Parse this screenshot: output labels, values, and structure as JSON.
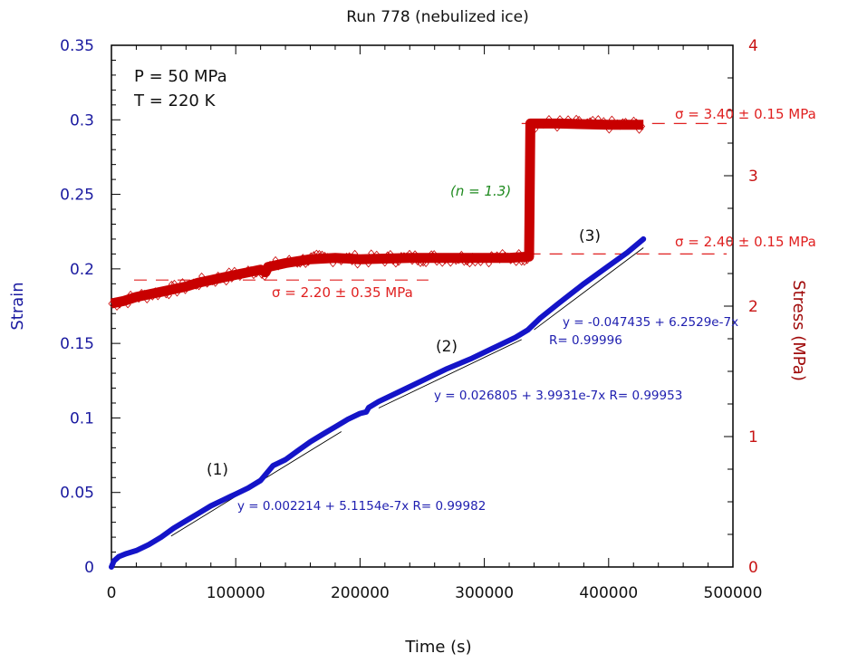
{
  "chart_data": {
    "type": "line",
    "title": "Run 778 (nebulized ice)",
    "xlabel": "Time (s)",
    "ylabel": "Strain",
    "y2label": "Stress (MPa)",
    "xlim": [
      0,
      500000
    ],
    "ylim": [
      0,
      0.35
    ],
    "y2lim": [
      0,
      4
    ],
    "grid": false,
    "x_ticks": [
      {
        "value": 0,
        "label": "0"
      },
      {
        "value": 100000,
        "label": "100000"
      },
      {
        "value": 200000,
        "label": "200000"
      },
      {
        "value": 300000,
        "label": "300000"
      },
      {
        "value": 400000,
        "label": "400000"
      },
      {
        "value": 500000,
        "label": "500000"
      }
    ],
    "y_ticks": [
      {
        "value": 0,
        "label": "0"
      },
      {
        "value": 0.05,
        "label": "0.05"
      },
      {
        "value": 0.1,
        "label": "0.1"
      },
      {
        "value": 0.15,
        "label": "0.15"
      },
      {
        "value": 0.2,
        "label": "0.2"
      },
      {
        "value": 0.25,
        "label": "0.25"
      },
      {
        "value": 0.3,
        "label": "0.3"
      },
      {
        "value": 0.35,
        "label": "0.35"
      }
    ],
    "y2_ticks": [
      {
        "value": 0,
        "label": "0"
      },
      {
        "value": 1,
        "label": "1"
      },
      {
        "value": 2,
        "label": "2"
      },
      {
        "value": 3,
        "label": "3"
      },
      {
        "value": 4,
        "label": "4"
      }
    ],
    "x_minor_step": 20000,
    "y_minor_step": 0.01,
    "y2_minor_step": 0.25,
    "conditions": [
      "P = 50 MPa",
      "T = 220 K"
    ],
    "series": [
      {
        "name": "Strain",
        "axis": "left",
        "color": "#1414c8",
        "points": [
          [
            0,
            0.0
          ],
          [
            2000,
            0.004
          ],
          [
            6000,
            0.007
          ],
          [
            12000,
            0.009
          ],
          [
            20000,
            0.011
          ],
          [
            30000,
            0.015
          ],
          [
            40000,
            0.02
          ],
          [
            50000,
            0.026
          ],
          [
            60000,
            0.031
          ],
          [
            70000,
            0.036
          ],
          [
            80000,
            0.041
          ],
          [
            90000,
            0.045
          ],
          [
            100000,
            0.049
          ],
          [
            110000,
            0.053
          ],
          [
            120000,
            0.058
          ],
          [
            130000,
            0.068
          ],
          [
            140000,
            0.072
          ],
          [
            150000,
            0.078
          ],
          [
            160000,
            0.084
          ],
          [
            170000,
            0.089
          ],
          [
            180000,
            0.094
          ],
          [
            190000,
            0.099
          ],
          [
            200000,
            0.103
          ],
          [
            205000,
            0.104
          ],
          [
            207000,
            0.107
          ],
          [
            215000,
            0.111
          ],
          [
            230000,
            0.117
          ],
          [
            250000,
            0.125
          ],
          [
            270000,
            0.133
          ],
          [
            290000,
            0.14
          ],
          [
            310000,
            0.148
          ],
          [
            325000,
            0.154
          ],
          [
            335000,
            0.159
          ],
          [
            345000,
            0.167
          ],
          [
            360000,
            0.177
          ],
          [
            380000,
            0.19
          ],
          [
            400000,
            0.202
          ],
          [
            415000,
            0.211
          ],
          [
            428000,
            0.22
          ]
        ]
      },
      {
        "name": "Stress",
        "axis": "right",
        "color": "#c80000",
        "points": [
          [
            0,
            2.02
          ],
          [
            10000,
            2.04
          ],
          [
            20000,
            2.07
          ],
          [
            30000,
            2.09
          ],
          [
            40000,
            2.11
          ],
          [
            50000,
            2.13
          ],
          [
            60000,
            2.15
          ],
          [
            70000,
            2.18
          ],
          [
            80000,
            2.2
          ],
          [
            90000,
            2.22
          ],
          [
            100000,
            2.24
          ],
          [
            110000,
            2.26
          ],
          [
            120000,
            2.28
          ],
          [
            124000,
            2.26
          ],
          [
            126000,
            2.3
          ],
          [
            140000,
            2.33
          ],
          [
            160000,
            2.36
          ],
          [
            180000,
            2.37
          ],
          [
            200000,
            2.36
          ],
          [
            240000,
            2.37
          ],
          [
            280000,
            2.37
          ],
          [
            320000,
            2.37
          ],
          [
            336000,
            2.38
          ],
          [
            337000,
            3.4
          ],
          [
            360000,
            3.4
          ],
          [
            400000,
            3.39
          ],
          [
            428000,
            3.39
          ]
        ]
      }
    ],
    "fits": [
      {
        "segment": "(1)",
        "intercept": 0.002214,
        "slope": 5.1154e-07,
        "R": 0.99982,
        "x_range": [
          48000,
          185000
        ],
        "text": "y = 0.002214 + 5.1154e-7x   R= 0.99982"
      },
      {
        "segment": "(2)",
        "intercept": 0.026805,
        "slope": 3.9931e-07,
        "R": 0.99953,
        "x_range": [
          215000,
          330000
        ],
        "text": "y = 0.026805 + 3.9931e-7x   R= 0.99953"
      },
      {
        "segment": "(3)",
        "intercept": -0.047435,
        "slope": 6.2529e-07,
        "R": 0.99996,
        "x_range": [
          340000,
          428000
        ],
        "text_line1": "y = -0.047435 + 6.2529e-7x",
        "text_line2": "R= 0.99996"
      }
    ],
    "stress_levels": [
      {
        "value": 2.2,
        "text": "σ = 2.20 ± 0.35 MPa",
        "x_range": [
          0,
          255000
        ]
      },
      {
        "value": 2.4,
        "text": "σ = 2.40 ± 0.15 MPa",
        "x_range": [
          335000,
          495000
        ]
      },
      {
        "value": 3.4,
        "text": "σ = 3.40 ± 0.15 MPa",
        "x_range": [
          330000,
          495000
        ]
      }
    ],
    "annotations": {
      "segment_labels": [
        "(1)",
        "(2)",
        "(3)"
      ],
      "stress_exponent": "(n = 1.3)"
    }
  }
}
